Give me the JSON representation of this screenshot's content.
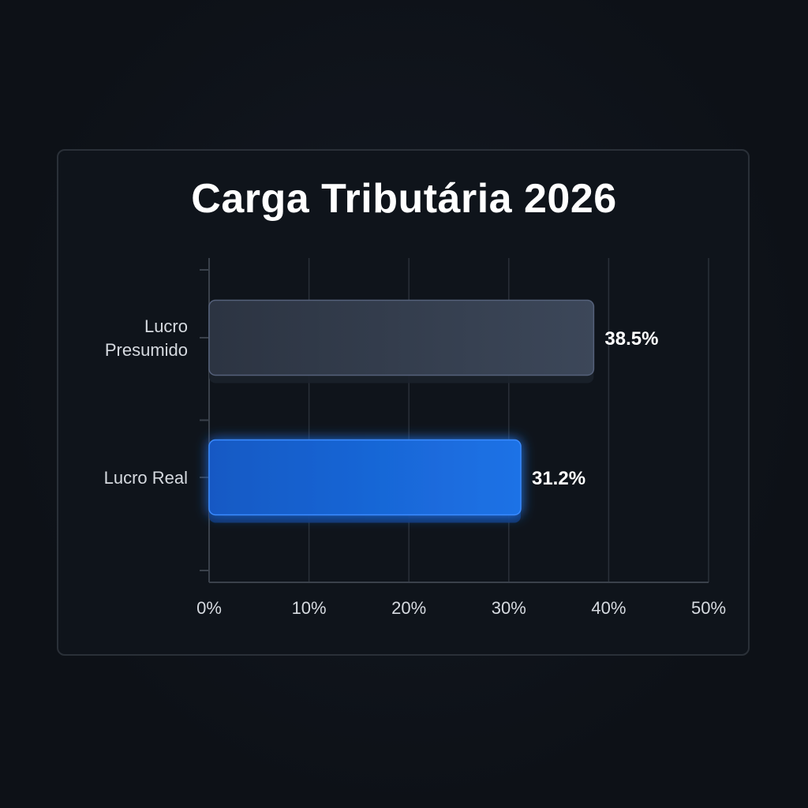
{
  "chart_data": {
    "type": "bar",
    "orientation": "horizontal",
    "title": "Carga Tributária 2026",
    "categories": [
      "Lucro Presumido",
      "Lucro Real"
    ],
    "category_lines": [
      [
        "Lucro",
        "Presumido"
      ],
      [
        "Lucro Real"
      ]
    ],
    "values": [
      38.5,
      31.2
    ],
    "value_labels": [
      "38.5%",
      "31.2%"
    ],
    "bar_colors": [
      "#3a4556",
      "#1a6ee0"
    ],
    "xlim": [
      0,
      50
    ],
    "xticks": [
      0,
      10,
      20,
      30,
      40,
      50
    ],
    "xtick_labels": [
      "0%",
      "10%",
      "20%",
      "30%",
      "40%",
      "50%"
    ],
    "grid": true
  }
}
